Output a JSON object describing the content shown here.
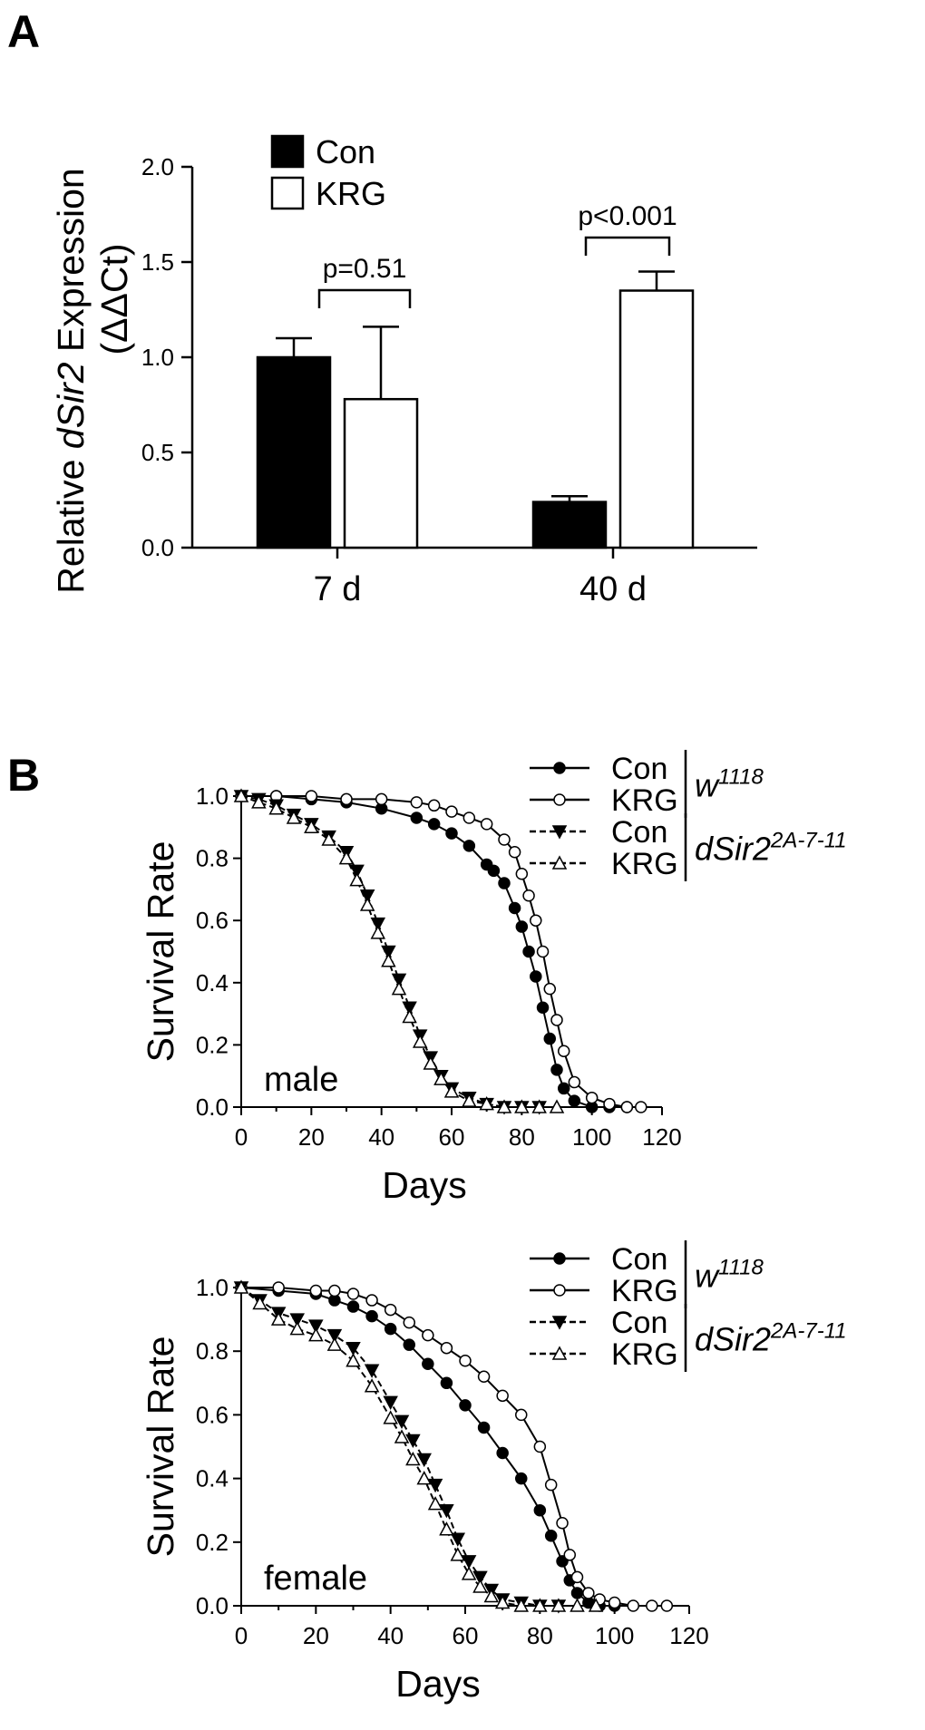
{
  "figure": {
    "panel_a_label": "A",
    "panel_b_label": "B"
  },
  "chart_data": [
    {
      "type": "bar",
      "panel": "A",
      "ylabel_prefix": "Relative ",
      "ylabel_gene": "dSir2",
      "ylabel_suffix": " Expression",
      "ylabel_line2": "(ΔΔCt)",
      "ylim": [
        0,
        2.0
      ],
      "yticks": [
        "0.0",
        "0.5",
        "1.0",
        "1.5",
        "2.0"
      ],
      "categories": [
        "7 d",
        "40 d"
      ],
      "series": [
        {
          "name": "Con",
          "values": [
            1.0,
            0.24
          ],
          "errors": [
            0.1,
            0.03
          ],
          "fill": "#000000"
        },
        {
          "name": "KRG",
          "values": [
            0.78,
            1.35
          ],
          "errors": [
            0.38,
            0.1
          ],
          "fill": "#ffffff"
        }
      ],
      "annotations": [
        "p=0.51",
        "p<0.001"
      ],
      "legend_position": "top-left"
    },
    {
      "type": "line",
      "panel": "B-male",
      "xlabel": "Days",
      "ylabel": "Survival Rate",
      "in_plot_label": "male",
      "xlim": [
        0,
        120
      ],
      "ylim": [
        0,
        1.0
      ],
      "xticks": [
        "0",
        "20",
        "40",
        "60",
        "80",
        "100",
        "120"
      ],
      "yticks": [
        "0.0",
        "0.2",
        "0.4",
        "0.6",
        "0.8",
        "1.0"
      ],
      "groups": [
        {
          "base": "w",
          "sup": "1118"
        },
        {
          "base": "dSir2",
          "sup": "2A-7-11"
        }
      ],
      "series": [
        {
          "name": "Con",
          "group": 0,
          "marker": "circle-filled",
          "dashed": false,
          "x": [
            0,
            10,
            20,
            30,
            40,
            50,
            55,
            60,
            65,
            70,
            72,
            75,
            78,
            80,
            82,
            84,
            86,
            88,
            90,
            92,
            95,
            100,
            105,
            110
          ],
          "y": [
            1.0,
            1.0,
            0.99,
            0.98,
            0.96,
            0.93,
            0.91,
            0.88,
            0.84,
            0.78,
            0.76,
            0.72,
            0.64,
            0.58,
            0.5,
            0.42,
            0.32,
            0.22,
            0.12,
            0.06,
            0.02,
            0.0,
            0.0,
            0.0
          ]
        },
        {
          "name": "KRG",
          "group": 0,
          "marker": "circle-open",
          "dashed": false,
          "x": [
            0,
            10,
            20,
            30,
            40,
            50,
            55,
            60,
            65,
            70,
            75,
            78,
            80,
            82,
            84,
            86,
            88,
            90,
            92,
            95,
            100,
            105,
            110,
            114
          ],
          "y": [
            1.0,
            1.0,
            1.0,
            0.99,
            0.99,
            0.98,
            0.97,
            0.95,
            0.93,
            0.91,
            0.86,
            0.82,
            0.75,
            0.68,
            0.6,
            0.5,
            0.38,
            0.28,
            0.18,
            0.08,
            0.03,
            0.01,
            0.0,
            0.0
          ]
        },
        {
          "name": "Con",
          "group": 1,
          "marker": "triangle-down-filled",
          "dashed": true,
          "x": [
            0,
            5,
            10,
            15,
            20,
            25,
            30,
            33,
            36,
            39,
            42,
            45,
            48,
            51,
            54,
            57,
            60,
            65,
            70,
            75,
            80,
            85
          ],
          "y": [
            1.0,
            0.99,
            0.97,
            0.94,
            0.91,
            0.87,
            0.82,
            0.76,
            0.68,
            0.59,
            0.5,
            0.41,
            0.32,
            0.23,
            0.16,
            0.1,
            0.06,
            0.03,
            0.01,
            0.0,
            0.0,
            0.0
          ]
        },
        {
          "name": "KRG",
          "group": 1,
          "marker": "triangle-up-open",
          "dashed": true,
          "x": [
            0,
            5,
            10,
            15,
            20,
            25,
            30,
            33,
            36,
            39,
            42,
            45,
            48,
            51,
            54,
            57,
            60,
            65,
            70,
            75,
            80,
            85,
            90
          ],
          "y": [
            1.0,
            0.98,
            0.96,
            0.93,
            0.9,
            0.86,
            0.8,
            0.73,
            0.65,
            0.56,
            0.47,
            0.38,
            0.29,
            0.21,
            0.14,
            0.09,
            0.05,
            0.02,
            0.01,
            0.0,
            0.0,
            0.0,
            0.0
          ]
        }
      ]
    },
    {
      "type": "line",
      "panel": "B-female",
      "xlabel": "Days",
      "ylabel": "Survival Rate",
      "in_plot_label": "female",
      "xlim": [
        0,
        120
      ],
      "ylim": [
        0,
        1.0
      ],
      "xticks": [
        "0",
        "20",
        "40",
        "60",
        "80",
        "100",
        "120"
      ],
      "yticks": [
        "0.0",
        "0.2",
        "0.4",
        "0.6",
        "0.8",
        "1.0"
      ],
      "groups": [
        {
          "base": "w",
          "sup": "1118"
        },
        {
          "base": "dSir2",
          "sup": "2A-7-11"
        }
      ],
      "series": [
        {
          "name": "Con",
          "group": 0,
          "marker": "circle-filled",
          "dashed": false,
          "x": [
            0,
            10,
            20,
            25,
            30,
            35,
            40,
            45,
            50,
            55,
            60,
            65,
            70,
            75,
            80,
            83,
            86,
            88,
            90,
            93,
            96,
            100
          ],
          "y": [
            1.0,
            0.99,
            0.98,
            0.96,
            0.94,
            0.91,
            0.87,
            0.82,
            0.76,
            0.7,
            0.63,
            0.56,
            0.48,
            0.4,
            0.3,
            0.22,
            0.14,
            0.08,
            0.04,
            0.01,
            0.0,
            0.0
          ]
        },
        {
          "name": "KRG",
          "group": 0,
          "marker": "circle-open",
          "dashed": false,
          "x": [
            0,
            10,
            20,
            25,
            30,
            35,
            40,
            45,
            50,
            55,
            60,
            65,
            70,
            75,
            80,
            83,
            86,
            88,
            90,
            93,
            96,
            100,
            105,
            110,
            114
          ],
          "y": [
            1.0,
            1.0,
            0.99,
            0.99,
            0.98,
            0.96,
            0.93,
            0.89,
            0.85,
            0.81,
            0.77,
            0.72,
            0.66,
            0.6,
            0.5,
            0.38,
            0.26,
            0.16,
            0.09,
            0.04,
            0.02,
            0.01,
            0.0,
            0.0,
            0.0
          ]
        },
        {
          "name": "Con",
          "group": 1,
          "marker": "triangle-down-filled",
          "dashed": true,
          "x": [
            0,
            5,
            10,
            15,
            20,
            25,
            30,
            35,
            40,
            43,
            46,
            49,
            52,
            55,
            58,
            61,
            64,
            67,
            70,
            75,
            80,
            85
          ],
          "y": [
            1.0,
            0.96,
            0.92,
            0.9,
            0.88,
            0.85,
            0.81,
            0.74,
            0.64,
            0.58,
            0.52,
            0.46,
            0.38,
            0.3,
            0.21,
            0.14,
            0.09,
            0.05,
            0.02,
            0.01,
            0.0,
            0.0
          ]
        },
        {
          "name": "KRG",
          "group": 1,
          "marker": "triangle-up-open",
          "dashed": true,
          "x": [
            0,
            5,
            10,
            15,
            20,
            25,
            30,
            35,
            40,
            43,
            46,
            49,
            52,
            55,
            58,
            61,
            64,
            67,
            70,
            75,
            80,
            85,
            90,
            95
          ],
          "y": [
            1.0,
            0.95,
            0.9,
            0.87,
            0.85,
            0.82,
            0.77,
            0.69,
            0.59,
            0.53,
            0.46,
            0.4,
            0.32,
            0.24,
            0.16,
            0.1,
            0.06,
            0.03,
            0.01,
            0.0,
            0.0,
            0.0,
            0.0,
            0.0
          ]
        }
      ]
    }
  ]
}
